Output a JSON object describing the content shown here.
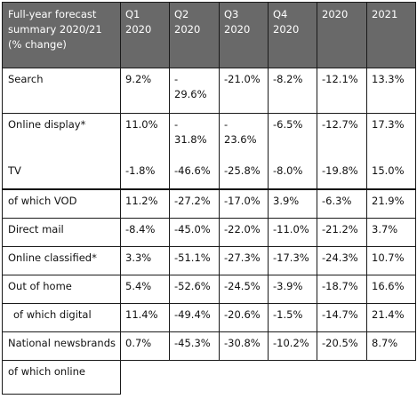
{
  "table": {
    "columns": [
      "Full-year forecast summary 2020/21 (% change)",
      "Q1 2020",
      "Q2 2020",
      "Q3 2020",
      "Q4 2020",
      "2020",
      "2021"
    ],
    "rows": [
      {
        "label": "Search",
        "values": [
          "9.2%",
          "-\n29.6%",
          "-21.0%",
          "-8.2%",
          "-12.1%",
          "13.3%"
        ]
      },
      {
        "label": "Online display*",
        "values": [
          "11.0%",
          "-\n31.8%",
          "-\n23.6%",
          "-6.5%",
          "-12.7%",
          "17.3%"
        ]
      },
      {
        "label": "TV",
        "values": [
          "-1.8%",
          "-46.6%",
          "-25.8%",
          "-8.0%",
          "-19.8%",
          "15.0%"
        ]
      },
      {
        "label": "of which VOD",
        "values": [
          "11.2%",
          "-27.2%",
          "-17.0%",
          "3.9%",
          "-6.3%",
          "21.9%"
        ]
      },
      {
        "label": "Direct mail",
        "values": [
          "-8.4%",
          "-45.0%",
          "-22.0%",
          "-11.0%",
          "-21.2%",
          "3.7%"
        ]
      },
      {
        "label": "Online classified*",
        "values": [
          "3.3%",
          "-51.1%",
          "-27.3%",
          "-17.3%",
          "-24.3%",
          "10.7%"
        ]
      },
      {
        "label": "Out of home",
        "values": [
          "5.4%",
          "-52.6%",
          "-24.5%",
          "-3.9%",
          "-18.7%",
          "16.6%"
        ]
      },
      {
        "label": "of which digital",
        "values": [
          "11.4%",
          "-49.4%",
          "-20.6%",
          "-1.5%",
          "-14.7%",
          "21.4%"
        ]
      },
      {
        "label": "National newsbrands",
        "values": [
          "0.7%",
          "-45.3%",
          "-30.8%",
          "-10.2%",
          "-20.5%",
          "8.7%"
        ]
      },
      {
        "label": "of which online",
        "values": []
      }
    ]
  }
}
